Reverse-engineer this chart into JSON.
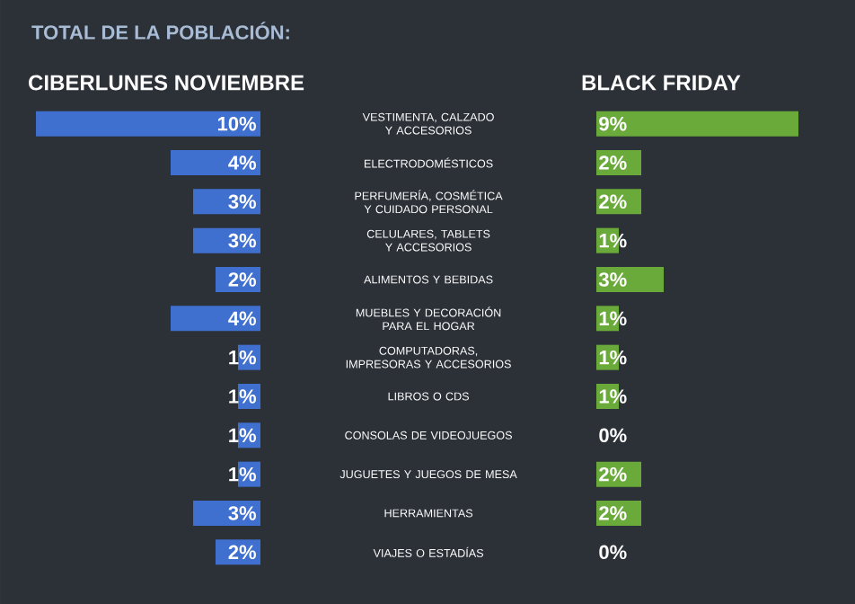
{
  "chart_data": [
    {
      "type": "bar",
      "orientation": "horizontal",
      "title": "TOTAL DE LA POBLACIÓN:",
      "tick_labels": "y",
      "categories": [
        "VESTIMENTA, CALZADO Y ACCESORIOS",
        "ELECTRODOMÉSTICOS",
        "PERFUMERÍA, COSMÉTICA Y CUIDADO PERSONAL",
        "CELULARES, TABLETS Y ACCESORIOS",
        "ALIMENTOS Y BEBIDAS",
        "MUEBLES Y DECORACIÓN PARA EL HOGAR",
        "COMPUTADORAS, IMPRESORAS Y ACCESORIOS",
        "LIBROS O CDS",
        "CONSOLAS DE VIDEOJUEGOS",
        "JUGUETES Y JUEGOS DE MESA",
        "HERRAMIENTAS",
        "VIAJES O ESTADÍAS"
      ],
      "series": [
        {
          "name": "CIBERLUNES NOVIEMBRE",
          "color": "#3f6fcf",
          "values": [
            10,
            4,
            3,
            3,
            2,
            4,
            1,
            1,
            1,
            1,
            3,
            2
          ],
          "value_labels": [
            "10%",
            "4%",
            "3%",
            "3%",
            "2%",
            "4%",
            "1%",
            "1%",
            "1%",
            "1%",
            "3%",
            "2%"
          ]
        }
      ]
    },
    {
      "type": "bar",
      "orientation": "horizontal",
      "tick_labels": false,
      "categories": [
        null,
        null,
        null,
        null,
        null,
        null,
        null,
        null,
        null,
        null,
        null,
        null
      ],
      "series": [
        {
          "name": "BLACK FRIDAY",
          "color": "#6aaa3a",
          "values": [
            9,
            2,
            2,
            1,
            3,
            1,
            1,
            1,
            0,
            2,
            2,
            0
          ],
          "value_labels": [
            "9%",
            "2%",
            "2%",
            "1%",
            "3%",
            "1%",
            "1%",
            "1%",
            "0%",
            "2%",
            "2%",
            "0%"
          ]
        }
      ]
    }
  ]
}
